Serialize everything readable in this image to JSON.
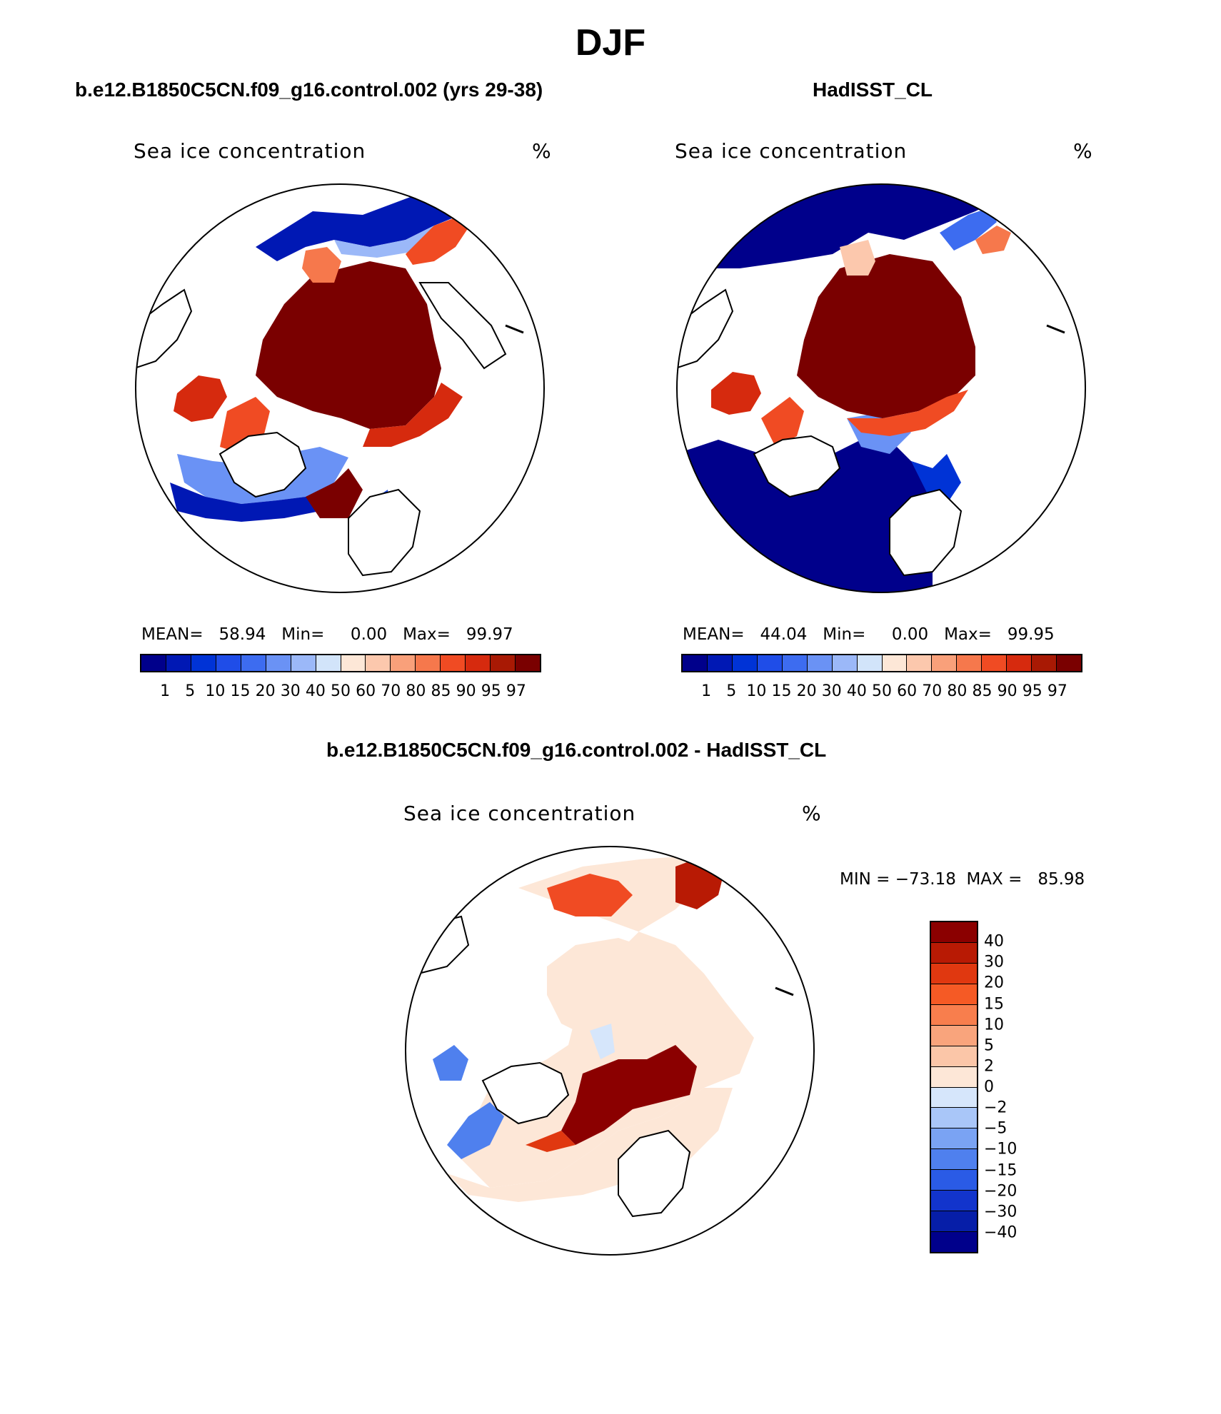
{
  "figure": {
    "title": "DJF",
    "left_panel_title": "b.e12.B1850C5CN.f09_g16.control.002 (yrs 29-38)",
    "right_panel_title": "HadISST_CL",
    "diff_title": "b.e12.B1850C5CN.f09_g16.control.002 - HadISST_CL"
  },
  "left_map": {
    "variable": "Sea ice concentration",
    "units": "%",
    "stats": "MEAN=   58.94   Min=     0.00   Max=   99.97"
  },
  "right_map": {
    "variable": "Sea ice concentration",
    "units": "%",
    "stats": "MEAN=   44.04   Min=     0.00   Max=   99.95"
  },
  "diff_map": {
    "variable": "Sea ice concentration",
    "units": "%",
    "stats": "MIN = −73.18  MAX =   85.98"
  },
  "main_colorbar": {
    "levels": [
      "1",
      "5",
      "10",
      "15",
      "20",
      "30",
      "40",
      "50",
      "60",
      "70",
      "80",
      "85",
      "90",
      "95",
      "97"
    ],
    "colors": [
      "#00008b",
      "#0018b4",
      "#0033d6",
      "#1f4de8",
      "#3d6cf0",
      "#6a92f5",
      "#9bb8f8",
      "#d2e4fa",
      "#fde7d7",
      "#fcc8ad",
      "#f9a07a",
      "#f6784c",
      "#f04b23",
      "#d62a0e",
      "#a81904",
      "#7a0000"
    ]
  },
  "diff_colorbar": {
    "levels": [
      "40",
      "30",
      "20",
      "15",
      "10",
      "5",
      "2",
      "0",
      "−2",
      "−5",
      "−10",
      "−15",
      "−20",
      "−30",
      "−40"
    ],
    "colors": [
      "#8b0000",
      "#b81a04",
      "#e03810",
      "#f55a25",
      "#f87e4d",
      "#f9a47c",
      "#fbc6a8",
      "#fde7d7",
      "#d6e6fb",
      "#a9c6f8",
      "#7aa3f3",
      "#4f80ee",
      "#2a5be6",
      "#1234cc",
      "#061ea8",
      "#00008b"
    ]
  }
}
